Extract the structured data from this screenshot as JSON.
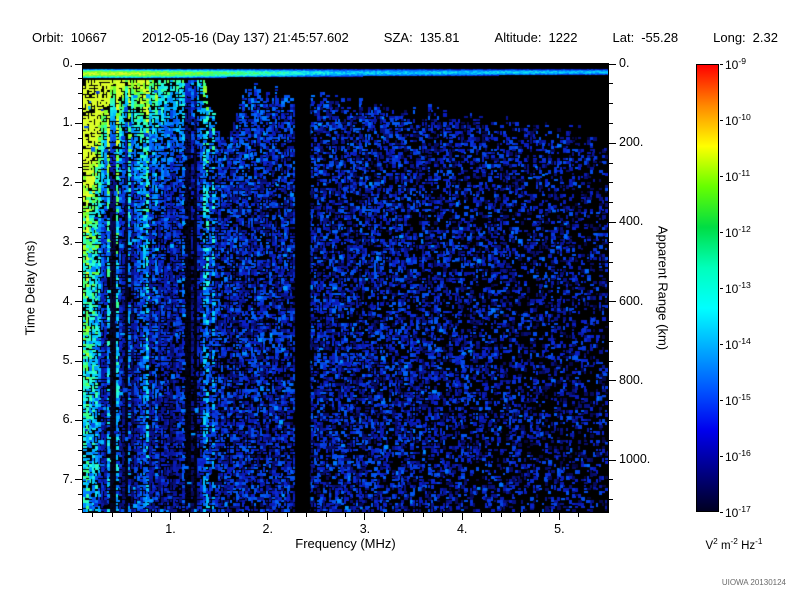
{
  "header": {
    "items": [
      {
        "label": "Orbit:",
        "value": "10667"
      },
      {
        "label": "",
        "value": "2012-05-16 (Day 137) 21:45:57.602"
      },
      {
        "label": "SZA:",
        "value": "135.81"
      },
      {
        "label": "Altitude:",
        "value": "1222"
      },
      {
        "label": "Lat:",
        "value": "-55.28"
      },
      {
        "label": "Long:",
        "value": "2.32"
      }
    ]
  },
  "chart_data": {
    "type": "heatmap",
    "description": "Radar sounder ionogram spectrogram: received spectral density vs frequency (x) and time delay (y); mostly dark-blue noise speckle, bright green-cyan ionospheric echo and vertical plasma-line striping below ~1.4 MHz, bright horizontal transmit line near zero delay, black vertical notch near 2.35 MHz, black echo-free wedge near 1.55 MHz and along the upper right",
    "xlabel": "Frequency (MHz)",
    "ylabel": "Time Delay (ms)",
    "y2label": "Apparent Range (km)",
    "xlim": [
      0.1,
      5.5
    ],
    "ylim": [
      0,
      7.54
    ],
    "y2lim": [
      0,
      1131
    ],
    "km_per_ms": 150,
    "x_major_ticks": [
      {
        "value": 1,
        "label": "1."
      },
      {
        "value": 2,
        "label": "2."
      },
      {
        "value": 3,
        "label": "3."
      },
      {
        "value": 4,
        "label": "4."
      },
      {
        "value": 5,
        "label": "5."
      }
    ],
    "x_minor_step": 0.2,
    "y_major_ticks": [
      {
        "value": 0,
        "label": "0."
      },
      {
        "value": 1,
        "label": "1."
      },
      {
        "value": 2,
        "label": "2."
      },
      {
        "value": 3,
        "label": "3."
      },
      {
        "value": 4,
        "label": "4."
      },
      {
        "value": 5,
        "label": "5."
      },
      {
        "value": 6,
        "label": "6."
      },
      {
        "value": 7,
        "label": "7."
      }
    ],
    "y_minor_step": 0.25,
    "y2_major_ticks": [
      {
        "value": 0,
        "label": "0."
      },
      {
        "value": 200,
        "label": "200."
      },
      {
        "value": 400,
        "label": "400."
      },
      {
        "value": 600,
        "label": "600."
      },
      {
        "value": 800,
        "label": "800."
      },
      {
        "value": 1000,
        "label": "1000."
      }
    ],
    "y2_minor_step": 50,
    "colorbar": {
      "scale": "log",
      "mantissa": "10",
      "tick_exponents": [
        "-9",
        "-10",
        "-11",
        "-12",
        "-13",
        "-14",
        "-15",
        "-16",
        "-17"
      ],
      "value_range": [
        "1e-17",
        "1e-9"
      ],
      "unit_parts": [
        {
          "base": "V",
          "exp": "2"
        },
        {
          "base": " m",
          "exp": "-2"
        },
        {
          "base": " Hz",
          "exp": "-1"
        }
      ],
      "gradient": [
        "#ff0000",
        "#ff8800",
        "#ffff00",
        "#66ff00",
        "#00dd44",
        "#00ffbb",
        "#00ffff",
        "#00aaff",
        "#0055ff",
        "#0000ee",
        "#000088",
        "#000022"
      ]
    },
    "features": {
      "transmit_line_delay_ms": 0.15,
      "ionospheric_stripes_below_mhz": 1.45,
      "notch_mhz": [
        2.28,
        2.44
      ],
      "echo_cusp_mhz": 1.55,
      "bright_patch": "intense green-cyan ionospheric return at low frequency and short delay, fading to blue speckle with depth"
    }
  },
  "credit": "UIOWA 20130124",
  "colors": {
    "background": "#ffffff",
    "plot_background": "#000000",
    "axis": "#000000",
    "credit": "#6a6a6a"
  }
}
